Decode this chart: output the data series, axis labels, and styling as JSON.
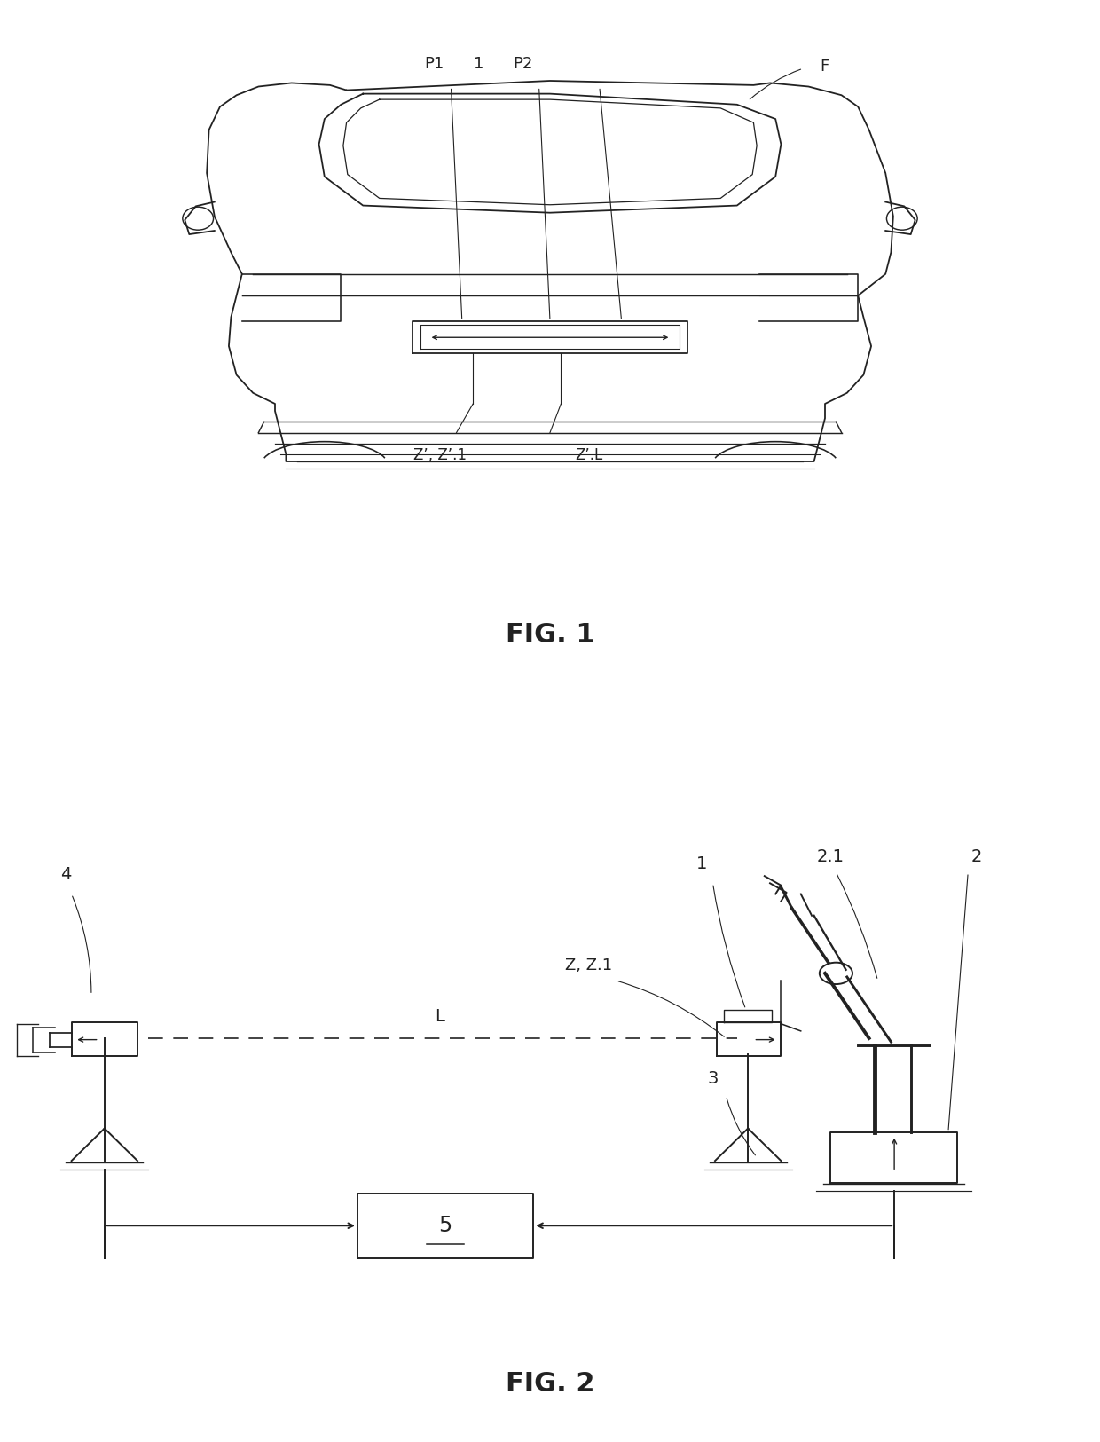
{
  "fig1_label": "FIG. 1",
  "fig2_label": "FIG. 2",
  "bg_color": "#ffffff",
  "line_color": "#222222",
  "text_color": "#222222",
  "fig1": {
    "label_P1": "P1",
    "label_1": "1",
    "label_P2": "P2",
    "label_F": "F",
    "label_Z1": "Z’, Z’.1",
    "label_ZL": "Z’.L"
  },
  "fig2": {
    "label_4": "4",
    "label_1": "1",
    "label_21": "2.1",
    "label_2": "2",
    "label_ZZ1": "Z, Z.1",
    "label_L": "L",
    "label_3": "3",
    "label_5": "5"
  }
}
